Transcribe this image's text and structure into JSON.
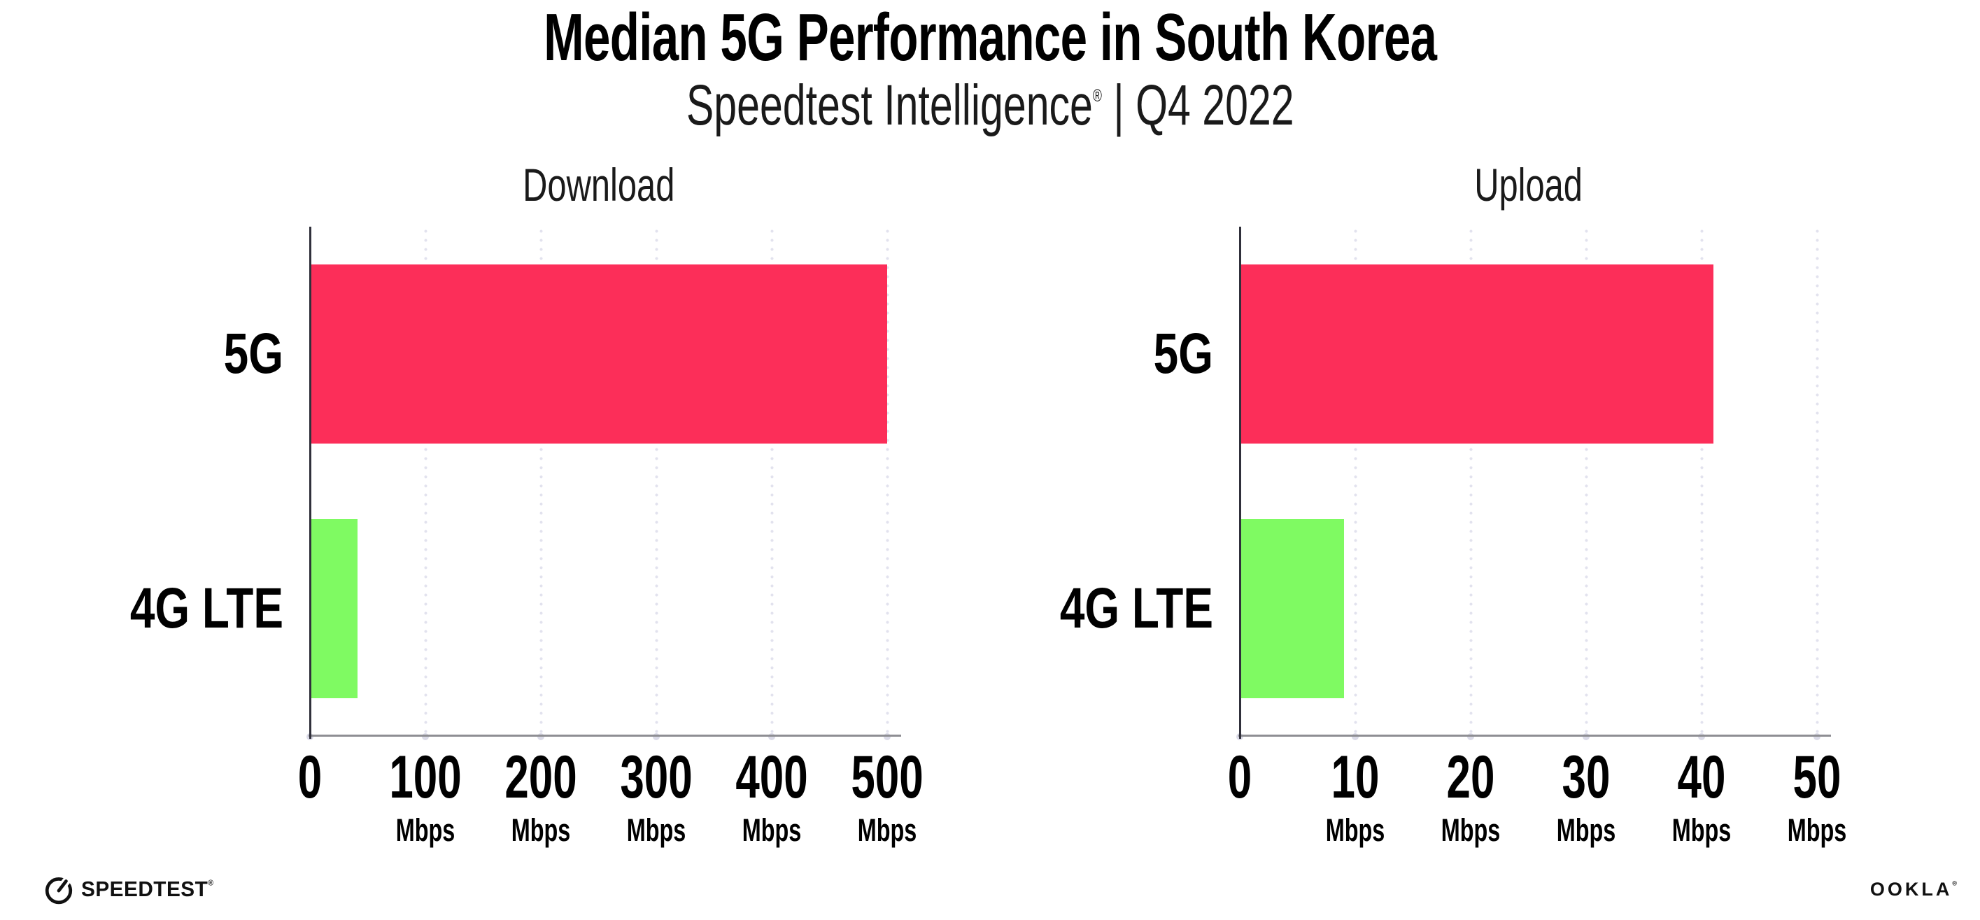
{
  "header": {
    "title": "Median 5G Performance in South Korea",
    "subtitle_brand": "Speedtest Intelligence",
    "subtitle_reg": "®",
    "subtitle_rest": " | Q4 2022"
  },
  "colors": {
    "bar_5g": "#fc2e59",
    "bar_4g_lte": "#7ffa62",
    "y_axis_line": "#30303b",
    "x_axis_line": "#8e8e93",
    "gridline_dots": "#e2e2ee",
    "axis_tick_dots": "#dbdbe8",
    "text": "#000000"
  },
  "chart_data": [
    {
      "type": "bar",
      "orientation": "horizontal",
      "title": "Download",
      "categories": [
        "5G",
        "4G LTE"
      ],
      "values": [
        500,
        41
      ],
      "value_unit": "Mbps",
      "xlim": [
        0,
        500
      ],
      "ticks": [
        0,
        100,
        200,
        300,
        400,
        500
      ],
      "tick_unit": "Mbps",
      "bar_colors": [
        "#fc2e59",
        "#7ffa62"
      ],
      "grid": "vertical-dotted",
      "legend": "none"
    },
    {
      "type": "bar",
      "orientation": "horizontal",
      "title": "Upload",
      "categories": [
        "5G",
        "4G LTE"
      ],
      "values": [
        41,
        9
      ],
      "value_unit": "Mbps",
      "xlim": [
        0,
        50
      ],
      "ticks": [
        0,
        10,
        20,
        30,
        40,
        50
      ],
      "tick_unit": "Mbps",
      "bar_colors": [
        "#fc2e59",
        "#7ffa62"
      ],
      "grid": "vertical-dotted",
      "legend": "none"
    }
  ],
  "footer": {
    "speedtest_label": "SPEEDTEST",
    "speedtest_reg": "®",
    "ookla_label": "OOKLA",
    "ookla_reg": "®"
  }
}
